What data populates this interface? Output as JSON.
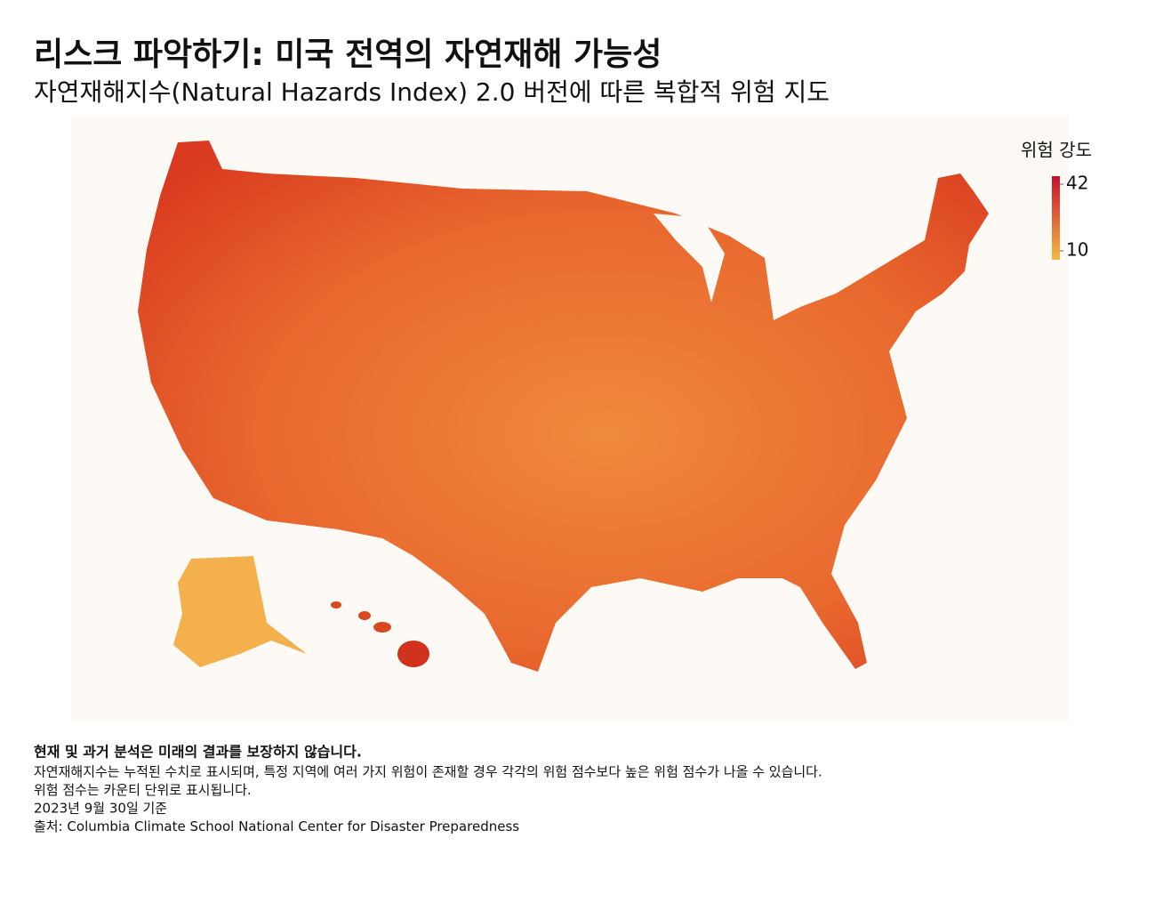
{
  "header": {
    "title": "리스크 파악하기: 미국 전역의 자연재해 가능성",
    "subtitle": "자연재해지수(Natural Hazards Index) 2.0 버전에 따른 복합적 위험 지도"
  },
  "legend": {
    "title": "위험 강도",
    "range": [
      10,
      42
    ],
    "ticks": [
      42,
      10
    ],
    "colors": [
      "#f5b942",
      "#c8102e"
    ]
  },
  "notes": {
    "disclaimer": "현재 및 과거 분석은 미래의 결과를 보장하지 않습니다.",
    "lines": [
      "자연재해지수는 누적된 수치로 표시되며, 특정 지역에 여러 가지 위험이 존재할 경우 각각의 위험 점수보다 높은 위험 점수가 나올 수 있습니다.",
      "위험 점수는 카운티 단위로 표시됩니다.",
      "2023년 9월 30일 기준",
      "출처: Columbia Climate School National Center for Disaster Preparedness"
    ]
  }
}
